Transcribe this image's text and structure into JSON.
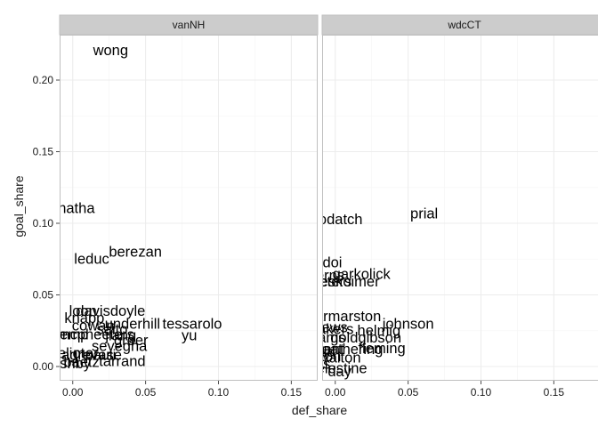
{
  "chart_data": {
    "type": "scatter",
    "xlabel": "def_share",
    "ylabel": "goal_share",
    "xlim": [
      -0.009,
      0.17
    ],
    "ylim": [
      -0.011,
      0.23
    ],
    "x_ticks": [
      0.0,
      0.05,
      0.1,
      0.15
    ],
    "x_tick_labels": [
      "0.00",
      "0.05",
      "0.10",
      "0.15"
    ],
    "y_ticks": [
      0.0,
      0.05,
      0.1,
      0.15,
      0.2
    ],
    "y_tick_labels": [
      "0.00",
      "0.05",
      "0.10",
      "0.15",
      "0.20"
    ],
    "grid": true,
    "colors": {
      "panel_bg": "#ffffff",
      "panel_border": "#bfbfbf",
      "strip_bg": "#cccccc",
      "grid_major": "#ececec",
      "grid_minor": "#f6f6f6",
      "text": "#000000"
    },
    "facets": [
      {
        "strip": "vanNH",
        "points": [
          {
            "label": "wong",
            "x": 0.026,
            "y": 0.22
          },
          {
            "label": "chatha",
            "x": 0.0,
            "y": 0.11
          },
          {
            "label": "berezan",
            "x": 0.043,
            "y": 0.0795
          },
          {
            "label": "leduc",
            "x": 0.013,
            "y": 0.0745
          },
          {
            "label": "davisdoyle",
            "x": 0.026,
            "y": 0.038
          },
          {
            "label": "loon",
            "x": 0.007,
            "y": 0.038
          },
          {
            "label": "knapp",
            "x": 0.008,
            "y": 0.033
          },
          {
            "label": "underhill",
            "x": 0.041,
            "y": 0.029
          },
          {
            "label": "tessarolo",
            "x": 0.082,
            "y": 0.029
          },
          {
            "label": "cowan",
            "x": 0.014,
            "y": 0.028
          },
          {
            "label": "saito",
            "x": 0.027,
            "y": 0.0255
          },
          {
            "label": "yu",
            "x": 0.08,
            "y": 0.021
          },
          {
            "label": "stemp",
            "x": -0.003,
            "y": 0.0215
          },
          {
            "label": "mcpheeters",
            "x": 0.016,
            "y": 0.0215
          },
          {
            "label": "jiang",
            "x": 0.033,
            "y": 0.021
          },
          {
            "label": "greer",
            "x": 0.04,
            "y": 0.0175
          },
          {
            "label": "seyegha",
            "x": 0.032,
            "y": 0.0135
          },
          {
            "label": "eliot",
            "x": -0.001,
            "y": 0.0085
          },
          {
            "label": "mar",
            "x": 0.009,
            "y": 0.0085
          },
          {
            "label": "agrevase",
            "x": 0.013,
            "y": 0.0075
          },
          {
            "label": "pauli",
            "x": 0.019,
            "y": 0.0075
          },
          {
            "label": "baetz",
            "x": 0.006,
            "y": 0.0025
          },
          {
            "label": "tarrand",
            "x": 0.034,
            "y": 0.003
          },
          {
            "label": "ashby",
            "x": -0.001,
            "y": 0.0015
          }
        ]
      },
      {
        "strip": "wdcCT",
        "points": [
          {
            "label": "prial",
            "x": 0.061,
            "y": 0.106
          },
          {
            "label": "wodatch",
            "x": 0.0,
            "y": 0.102
          },
          {
            "label": "doi",
            "x": -0.002,
            "y": 0.072
          },
          {
            "label": "kerns",
            "x": -0.006,
            "y": 0.063
          },
          {
            "label": "garkolick",
            "x": 0.018,
            "y": 0.064
          },
          {
            "label": "bowpeters",
            "x": -0.012,
            "y": 0.0585
          },
          {
            "label": "eskoimer",
            "x": 0.01,
            "y": 0.0585
          },
          {
            "label": "hibbethalonen",
            "x": -0.054,
            "y": 0.0345
          },
          {
            "label": "harmarston",
            "x": 0.006,
            "y": 0.0345
          },
          {
            "label": "johnson",
            "x": 0.05,
            "y": 0.029
          },
          {
            "label": "matthews",
            "x": -0.013,
            "y": 0.0265
          },
          {
            "label": "breakers",
            "x": -0.007,
            "y": 0.0255
          },
          {
            "label": "helmig",
            "x": 0.03,
            "y": 0.0245
          },
          {
            "label": "goldgibson",
            "x": 0.021,
            "y": 0.0195
          },
          {
            "label": "adams",
            "x": -0.008,
            "y": 0.0195
          },
          {
            "label": "bryant",
            "x": -0.008,
            "y": 0.0115
          },
          {
            "label": "heathering",
            "x": 0.009,
            "y": 0.0115
          },
          {
            "label": "fleming",
            "x": 0.032,
            "y": 0.012
          },
          {
            "label": "harold",
            "x": -0.014,
            "y": 0.0095
          },
          {
            "label": "boyleton",
            "x": -0.015,
            "y": 0.0065
          },
          {
            "label": "walton",
            "x": 0.003,
            "y": 0.0055
          },
          {
            "label": "ficiolis",
            "x": -0.017,
            "y": 0.001
          },
          {
            "label": "celestine",
            "x": 0.002,
            "y": -0.002
          },
          {
            "label": "day",
            "x": 0.003,
            "y": -0.004
          }
        ]
      }
    ]
  }
}
